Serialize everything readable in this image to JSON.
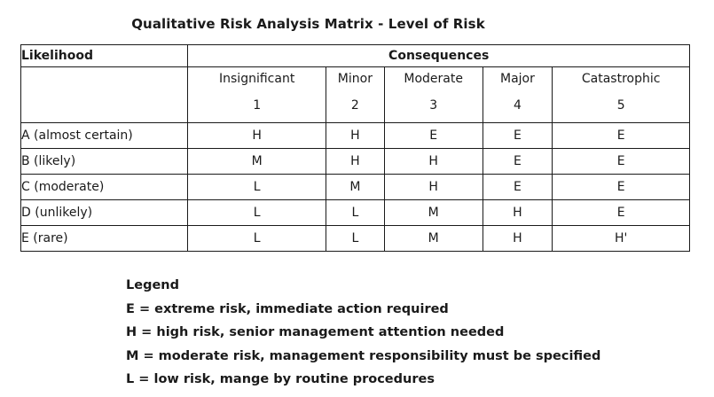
{
  "title": "Qualitative Risk Analysis Matrix - Level of Risk",
  "table": {
    "likelihood_header": "Likelihood",
    "consequences_header": "Consequences",
    "columns": [
      {
        "name": "Insignificant",
        "number": "1"
      },
      {
        "name": "Minor",
        "number": "2"
      },
      {
        "name": "Moderate",
        "number": "3"
      },
      {
        "name": "Major",
        "number": "4"
      },
      {
        "name": "Catastrophic",
        "number": "5"
      }
    ],
    "rows": [
      {
        "label": "A (almost certain)",
        "cells": [
          "H",
          "H",
          "E",
          "E",
          "E"
        ]
      },
      {
        "label": "B (likely)",
        "cells": [
          "M",
          "H",
          "H",
          "E",
          "E"
        ]
      },
      {
        "label": "C (moderate)",
        "cells": [
          "L",
          "M",
          "H",
          "E",
          "E"
        ]
      },
      {
        "label": "D (unlikely)",
        "cells": [
          "L",
          "L",
          "M",
          "H",
          "E"
        ]
      },
      {
        "label": "E (rare)",
        "cells": [
          "L",
          "L",
          "M",
          "H",
          "H'"
        ]
      }
    ]
  },
  "legend": {
    "heading": "Legend",
    "items": [
      "E = extreme risk, immediate action required",
      "H = high risk, senior management attention needed",
      "M = moderate risk, management responsibility must be specified",
      "L = low risk, mange by routine procedures"
    ]
  }
}
